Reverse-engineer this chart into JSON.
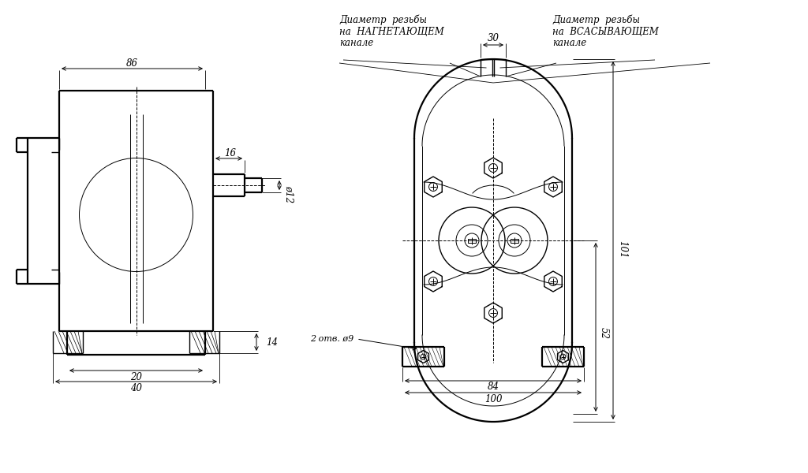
{
  "bg_color": "#ffffff",
  "lc": "#000000",
  "fig_w": 10.24,
  "fig_h": 6.0,
  "ann_nagn": "Диаметр  резьбы\nна  НАГНЕТАЮЩЕМ\nканале",
  "ann_vsas": "Диаметр  резьбы\nна  ВСАСЫВАЮЩЕМ\nканале",
  "dim_86": "86",
  "dim_16": "16",
  "dim_phi12": "ø12",
  "dim_14": "14",
  "dim_20": "20",
  "dim_40": "40",
  "dim_30": "30",
  "dim_101": "101",
  "dim_52": "52",
  "dim_84": "84",
  "dim_100": "100",
  "dim_2otv": "2 отв. ø9"
}
